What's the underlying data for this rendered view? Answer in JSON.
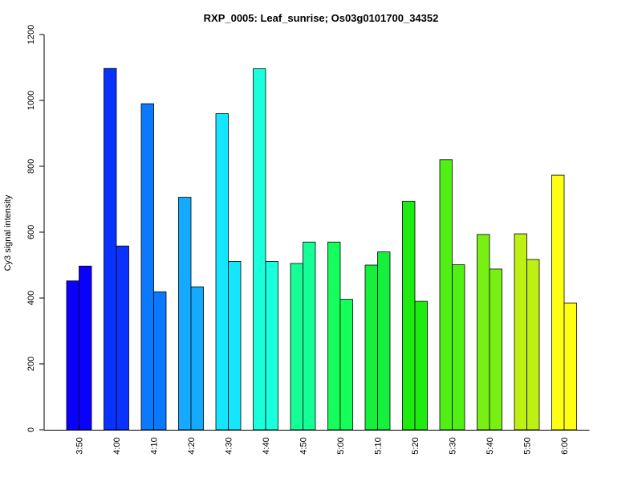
{
  "chart_data": {
    "type": "bar",
    "title": "RXP_0005: Leaf_sunrise; Os03g0101700_34352",
    "xlabel": "",
    "ylabel": "Cy3 signal intensity",
    "ylim": [
      0,
      1200
    ],
    "yticks": [
      0,
      200,
      400,
      600,
      800,
      1000,
      1200
    ],
    "grid": false,
    "legend": "none",
    "categories": [
      "3:50",
      "4:00",
      "4:10",
      "4:20",
      "4:30",
      "4:40",
      "4:50",
      "5:00",
      "5:10",
      "5:20",
      "5:30",
      "5:40",
      "5:50",
      "6:00"
    ],
    "colors": [
      "#0a00ff",
      "#0a32ff",
      "#0a78ff",
      "#14aaff",
      "#14e6ff",
      "#1affdc",
      "#14ff96",
      "#14ff5a",
      "#14f03c",
      "#1eeb0f",
      "#50f014",
      "#78f014",
      "#bef014",
      "#ffff14"
    ],
    "series": [
      {
        "values": [
          452,
          1097,
          990,
          706,
          960,
          1096,
          505,
          570,
          500,
          694,
          820,
          593,
          595,
          773
        ]
      },
      {
        "values": [
          497,
          558,
          419,
          434,
          511,
          511,
          570,
          396,
          540,
          390,
          501,
          488,
          517,
          385
        ]
      }
    ]
  }
}
